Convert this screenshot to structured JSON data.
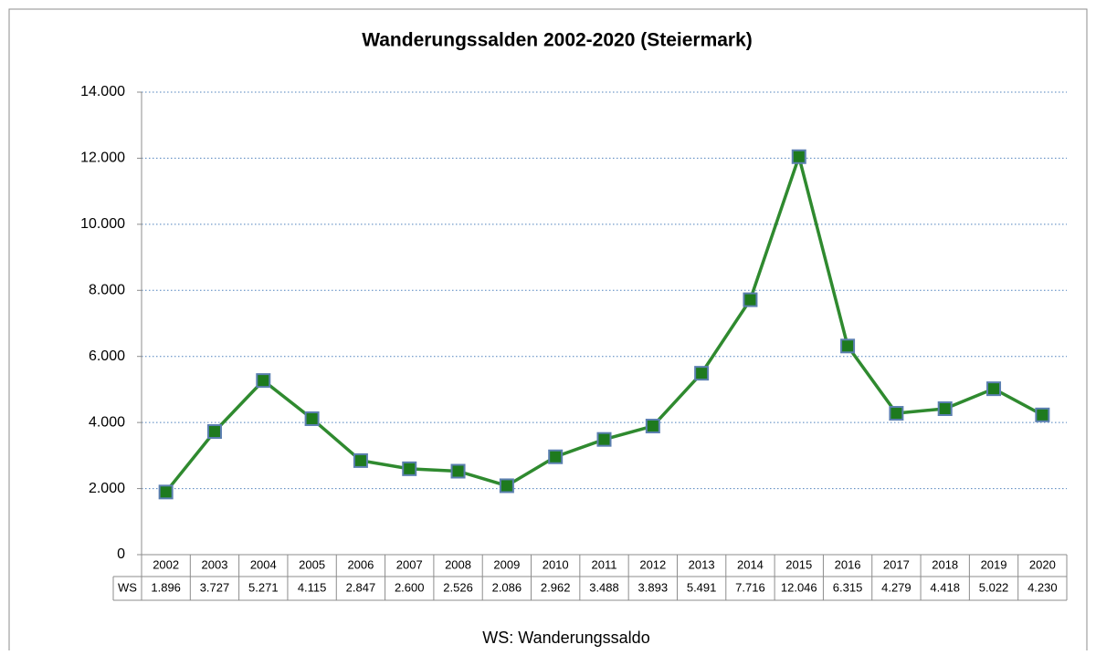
{
  "chart_data": {
    "type": "line",
    "title": "Wanderungssalden 2002-2020 (Steiermark)",
    "note": "WS: Wanderungssaldo",
    "categories": [
      "2002",
      "2003",
      "2004",
      "2005",
      "2006",
      "2007",
      "2008",
      "2009",
      "2010",
      "2011",
      "2012",
      "2013",
      "2014",
      "2015",
      "2016",
      "2017",
      "2018",
      "2019",
      "2020"
    ],
    "series": [
      {
        "name": "WS",
        "color": "#2f8a2f",
        "values": [
          1896,
          3727,
          5271,
          4115,
          2847,
          2600,
          2526,
          2086,
          2962,
          3488,
          3893,
          5491,
          7716,
          12046,
          6315,
          4279,
          4418,
          5022,
          4230
        ],
        "value_labels": [
          "1.896",
          "3.727",
          "5.271",
          "4.115",
          "2.847",
          "2.600",
          "2.526",
          "2.086",
          "2.962",
          "3.488",
          "3.893",
          "5.491",
          "7.716",
          "12.046",
          "6.315",
          "4.279",
          "4.418",
          "5.022",
          "4.230"
        ]
      }
    ],
    "ylim": [
      0,
      14000
    ],
    "yticks": [
      0,
      {
        "value": 2000,
        "label": "2.000"
      },
      {
        "value": 4000,
        "label": "4.000"
      },
      {
        "value": 6000,
        "label": "6.000"
      },
      {
        "value": 8000,
        "label": "8.000"
      },
      {
        "value": 10000,
        "label": "10.000"
      },
      {
        "value": 12000,
        "label": "12.000"
      },
      {
        "value": 14000,
        "label": "14.000"
      }
    ],
    "grid": true
  }
}
